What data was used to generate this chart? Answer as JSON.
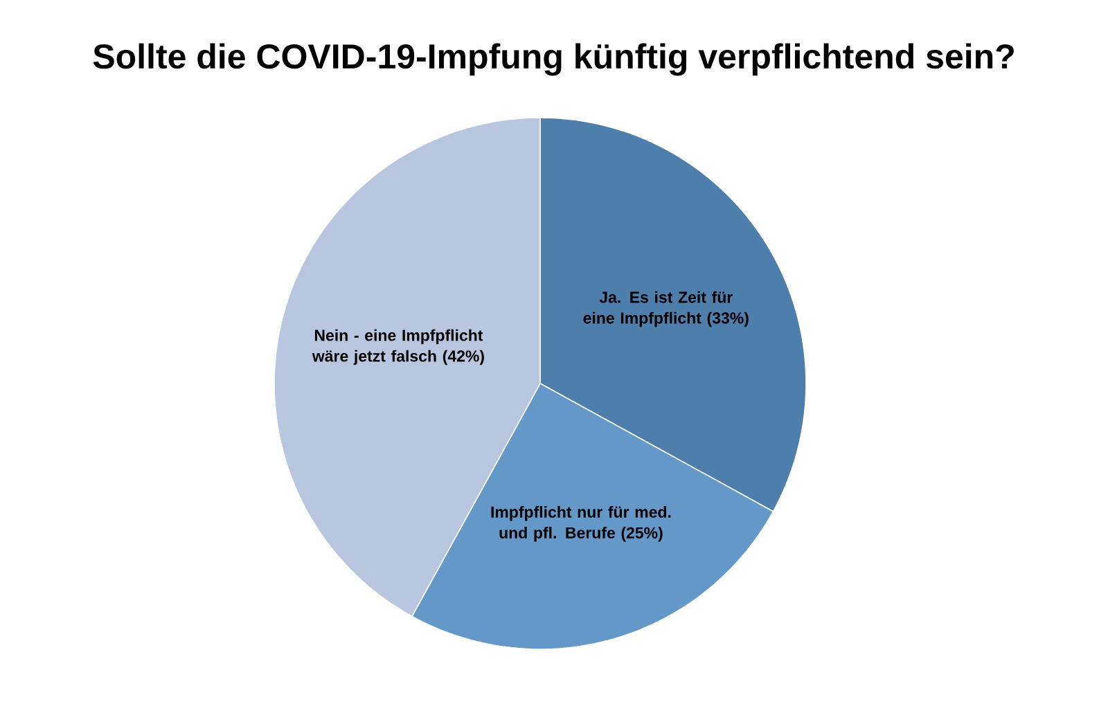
{
  "chart_data": {
    "type": "pie",
    "title": "Sollte die COVID-19-Impfung künftig verpflichtend sein?",
    "categories": [
      "Ja. Es ist Zeit für eine Impfpflicht",
      "Impfpflicht nur für med. und pfl. Berufe",
      "Nein - eine Impfpflicht wäre jetzt falsch"
    ],
    "values": [
      33,
      25,
      42
    ],
    "value_labels": [
      "(33%)",
      "(25%)",
      "(42%)"
    ],
    "colors": [
      "#4e7fac",
      "#6398c9",
      "#b8c7df"
    ]
  }
}
